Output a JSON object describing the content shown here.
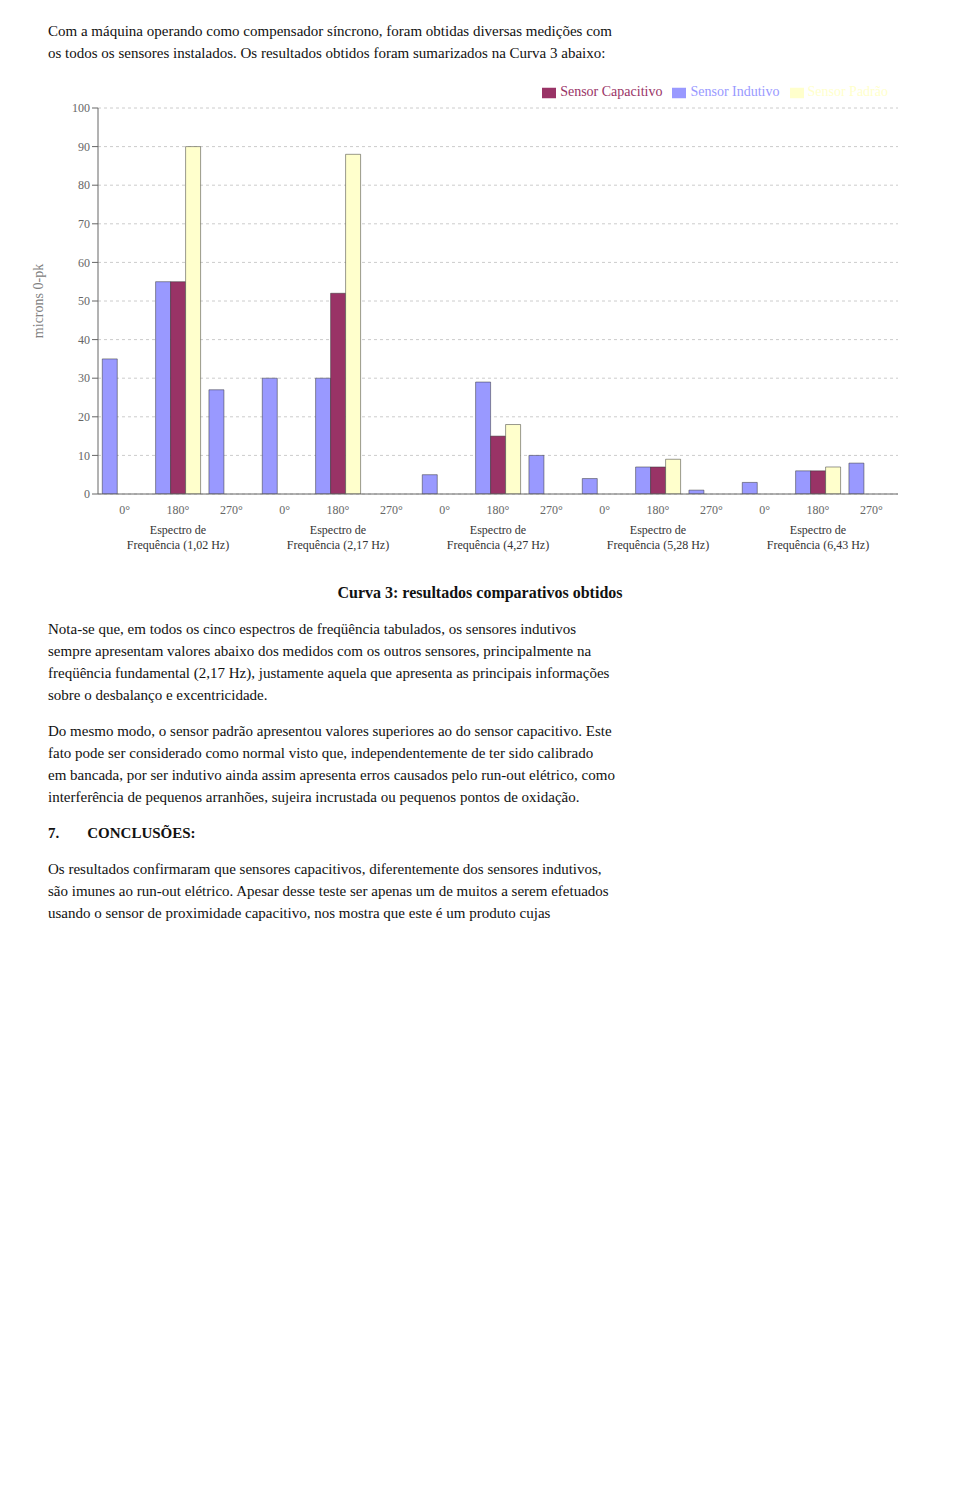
{
  "chart_data": {
    "type": "bar",
    "title": "Curva 3: resultados comparativos obtidos",
    "ylabel": "microns 0-pk",
    "header_text": [
      "Com a máquina operando como compensador síncrono, foram obtidas diversas medições com",
      "os todos os sensores instalados. Os resultados obtidos foram sumarizados na Curva 3 abaixo:"
    ],
    "categories": [
      "0°",
      "180°",
      "270°",
      "0°",
      "180°",
      "270°",
      "0°",
      "180°",
      "270°",
      "0°",
      "180°",
      "270°",
      "0°",
      "180°",
      "270°"
    ],
    "group_labels": [
      [
        "Espectro de",
        "Frequência (1,02 Hz)"
      ],
      [
        "Espectro de",
        "Frequência (2,17 Hz)"
      ],
      [
        "Espectro de",
        "Frequência (4,27 Hz)"
      ],
      [
        "Espectro de",
        "Frequência (5,28 Hz)"
      ],
      [
        "Espectro de",
        "Frequência (6,43 Hz)"
      ]
    ],
    "series": [
      {
        "name": "Sensor Indutivo",
        "color": "#9999FF",
        "values": [
          35,
          55,
          27,
          30,
          30,
          0,
          5,
          29,
          10,
          4,
          7,
          1,
          3,
          6,
          8
        ]
      },
      {
        "name": "Sensor Capacitivo",
        "color": "#993366",
        "values": [
          0,
          55,
          0,
          0,
          52,
          0,
          0,
          15,
          0,
          0,
          7,
          0,
          0,
          6,
          0
        ]
      },
      {
        "name": "Sensor Padrão",
        "color": "#FFFFCC",
        "values": [
          0,
          90,
          0,
          0,
          88,
          0,
          0,
          18,
          0,
          0,
          9,
          0,
          0,
          7,
          0
        ]
      }
    ],
    "ylim": [
      0,
      100
    ],
    "yticks": [
      0,
      10,
      20,
      30,
      40,
      50,
      60,
      70,
      80,
      90,
      100
    ],
    "grid": true,
    "legend": "upper right",
    "annotations": [
      [
        "Nota-se que, em todos os cinco espectros de freqüência tabulados, os sensores indutivos",
        "sempre apresentam valores abaixo dos medidos com os outros sensores, principalmente na",
        "freqüência fundamental (2,17 Hz), justamente aquela que apresenta as principais informações",
        "sobre o desbalanço e excentricidade."
      ],
      [
        "Do mesmo modo, o sensor padrão apresentou valores superiores ao do sensor capacitivo. Este",
        "fato pode ser considerado como normal visto que, independentemente de ter sido calibrado",
        "em bancada, por ser indutivo ainda assim apresenta erros causados pelo run-out elétrico, como",
        "interferência de pequenos arranhões, sujeira incrustada ou pequenos pontos de oxidação."
      ],
      [
        [
          "7.",
          "CONCLUSÕES:"
        ]
      ],
      [
        "Os resultados confirmaram que sensores capacitivos, diferentemente dos sensores indutivos,",
        "são imunes ao run-out elétrico. Apesar desse teste ser apenas um de muitos a serem efetuados",
        "usando o sensor de proximidade capacitivo, nos mostra que este é um produto cujas"
      ]
    ]
  }
}
